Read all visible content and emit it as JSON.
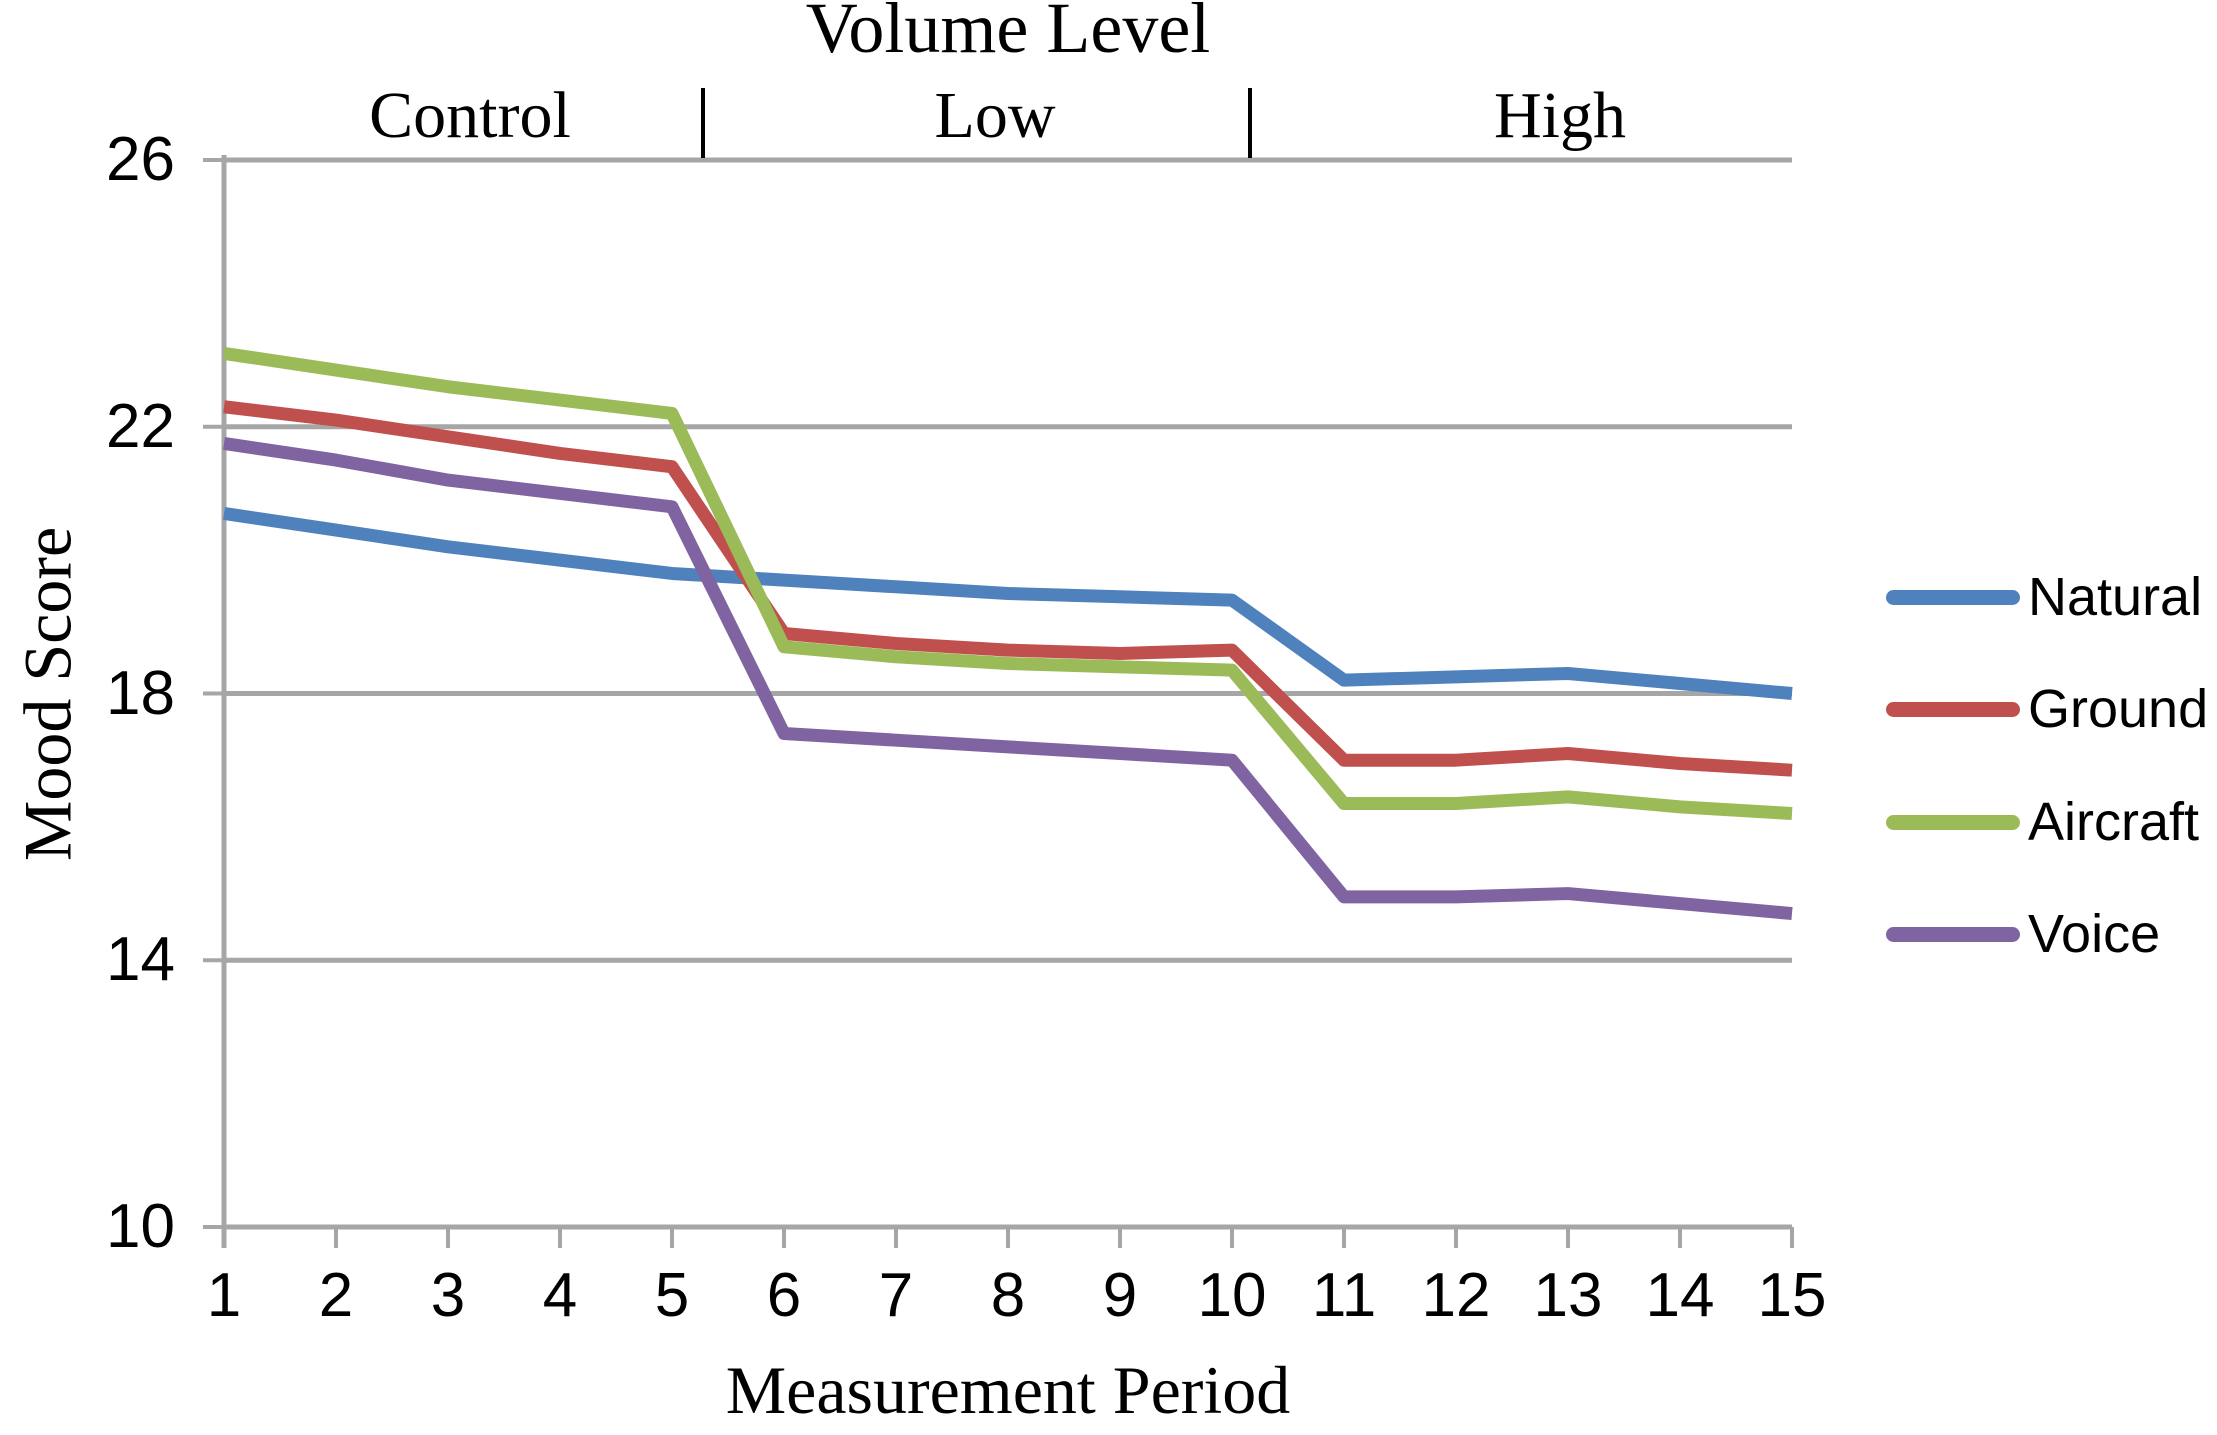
{
  "chart_data": {
    "type": "line",
    "title": "Volume Level",
    "xlabel": "Measurement Period",
    "ylabel": "Mood Score",
    "x": [
      1,
      2,
      3,
      4,
      5,
      6,
      7,
      8,
      9,
      10,
      11,
      12,
      13,
      14,
      15
    ],
    "xlim": [
      1,
      15
    ],
    "ylim": [
      10,
      26
    ],
    "y_ticks": [
      26,
      22,
      18,
      14,
      10
    ],
    "grid": true,
    "legend_position": "right-middle",
    "axis_color": "#A6A6A6",
    "separator_color": "#000000",
    "background": "#FFFFFF",
    "sections": [
      {
        "label": "Control",
        "periods": [
          1,
          5
        ]
      },
      {
        "label": "Low",
        "periods": [
          6,
          10
        ]
      },
      {
        "label": "High",
        "periods": [
          11,
          15
        ]
      }
    ],
    "series": [
      {
        "name": "Natural",
        "color": "#4F81BD",
        "values": [
          20.7,
          20.45,
          20.2,
          20.0,
          19.8,
          19.7,
          19.6,
          19.5,
          19.45,
          19.4,
          18.2,
          18.25,
          18.3,
          18.15,
          18.0
        ]
      },
      {
        "name": "Ground",
        "color": "#C0504D",
        "values": [
          22.3,
          22.1,
          21.85,
          21.6,
          21.4,
          18.9,
          18.75,
          18.65,
          18.6,
          18.65,
          17.0,
          17.0,
          17.1,
          16.95,
          16.85
        ]
      },
      {
        "name": "Aircraft",
        "color": "#9BBB59",
        "values": [
          23.1,
          22.85,
          22.6,
          22.4,
          22.2,
          18.7,
          18.55,
          18.45,
          18.4,
          18.35,
          16.35,
          16.35,
          16.45,
          16.3,
          16.2
        ]
      },
      {
        "name": "Voice",
        "color": "#8064A2",
        "values": [
          21.75,
          21.5,
          21.2,
          21.0,
          20.8,
          17.4,
          17.3,
          17.2,
          17.1,
          17.0,
          14.95,
          14.95,
          15.0,
          14.85,
          14.7
        ]
      }
    ]
  }
}
